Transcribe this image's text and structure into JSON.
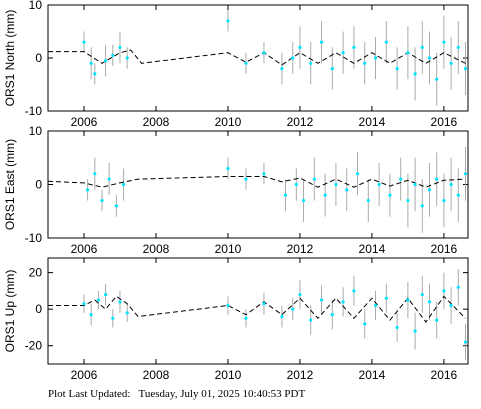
{
  "chart_data": [
    {
      "type": "scatter",
      "y_label": "ORS1 North (mm)",
      "xlim": [
        2005,
        2016.67
      ],
      "xticks": [
        2006,
        2008,
        2010,
        2012,
        2014,
        2016
      ],
      "ylim": [
        -10,
        10
      ],
      "yticks": [
        -10,
        0,
        10
      ],
      "point_color": "#00e5ff",
      "error_color": "#aaaaaa",
      "model_color": "#000000",
      "x": [
        2006.0,
        2006.2,
        2006.3,
        2006.6,
        2006.8,
        2007.0,
        2007.2,
        2010.0,
        2010.5,
        2011.0,
        2011.5,
        2011.8,
        2012.0,
        2012.3,
        2012.6,
        2012.9,
        2013.2,
        2013.5,
        2013.8,
        2014.1,
        2014.4,
        2014.7,
        2015.0,
        2015.2,
        2015.4,
        2015.6,
        2015.8,
        2016.0,
        2016.2,
        2016.4,
        2016.6
      ],
      "values": [
        3,
        -1,
        -3,
        -0.5,
        0.5,
        2,
        0,
        7,
        -1,
        1,
        -2,
        0,
        2,
        -1,
        3,
        -2,
        1,
        2,
        -1,
        0,
        3,
        -2,
        1,
        -3,
        2,
        0,
        -4,
        3,
        -1,
        2,
        -2
      ],
      "errors": [
        2,
        3,
        2,
        3,
        2,
        3,
        2,
        2,
        2,
        2,
        3,
        3,
        4,
        4,
        4,
        4,
        4,
        4,
        4,
        4,
        4,
        4,
        5,
        5,
        5,
        5,
        5,
        5,
        5,
        5,
        5
      ],
      "model_x": [
        2005.0,
        2006.0,
        2006.5,
        2007.0,
        2007.3,
        2007.6,
        2010.0,
        2010.5,
        2011.0,
        2011.5,
        2012.0,
        2012.5,
        2013.0,
        2013.5,
        2014.0,
        2014.5,
        2015.0,
        2015.5,
        2016.0,
        2016.6
      ],
      "model_values": [
        1.2,
        1.2,
        -1,
        1,
        1.5,
        -1,
        1,
        -0.8,
        1,
        -1.3,
        1,
        -1,
        1,
        -1,
        1,
        -1,
        1,
        -1,
        1,
        -1
      ]
    },
    {
      "type": "scatter",
      "y_label": "ORS1 East (mm)",
      "xlim": [
        2005,
        2016.67
      ],
      "xticks": [
        2006,
        2008,
        2010,
        2012,
        2014,
        2016
      ],
      "ylim": [
        -10,
        10
      ],
      "yticks": [
        -10,
        0,
        10
      ],
      "point_color": "#00e5ff",
      "error_color": "#aaaaaa",
      "model_color": "#000000",
      "x": [
        2006.1,
        2006.3,
        2006.5,
        2006.7,
        2006.9,
        2007.1,
        2010.0,
        2010.5,
        2011.0,
        2011.6,
        2011.9,
        2012.1,
        2012.4,
        2012.7,
        2013.0,
        2013.3,
        2013.6,
        2013.9,
        2014.2,
        2014.5,
        2014.8,
        2015.0,
        2015.2,
        2015.4,
        2015.6,
        2015.8,
        2016.0,
        2016.2,
        2016.4,
        2016.6
      ],
      "values": [
        -1,
        2,
        -3,
        1,
        -4,
        0,
        3,
        1,
        2,
        -2,
        0,
        -3,
        1,
        -2,
        0,
        -1,
        2,
        -3,
        0,
        -2,
        1,
        -3,
        0,
        -4,
        -1,
        1,
        -3,
        0,
        -2,
        2
      ],
      "errors": [
        2,
        3,
        2,
        3,
        2,
        3,
        2,
        2,
        2,
        3,
        3,
        4,
        4,
        4,
        4,
        4,
        4,
        4,
        4,
        4,
        4,
        5,
        5,
        5,
        5,
        5,
        5,
        5,
        5,
        5
      ],
      "model_x": [
        2005.0,
        2006.0,
        2006.5,
        2007.0,
        2007.5,
        2010.0,
        2011.0,
        2011.5,
        2012.0,
        2012.5,
        2013.0,
        2013.5,
        2014.0,
        2014.5,
        2015.0,
        2015.5,
        2016.0,
        2016.6
      ],
      "model_values": [
        0.6,
        0.3,
        -0.5,
        0.3,
        1,
        1.5,
        1.5,
        0.5,
        1.2,
        -0.5,
        1,
        -0.5,
        1,
        -0.3,
        0.8,
        -0.5,
        0.8,
        1
      ]
    },
    {
      "type": "scatter",
      "y_label": "ORS1 Up (mm)",
      "xlim": [
        2005,
        2016.67
      ],
      "xticks": [
        2006,
        2008,
        2010,
        2012,
        2014,
        2016
      ],
      "ylim": [
        -30,
        28
      ],
      "yticks": [
        -20,
        0,
        20
      ],
      "point_color": "#00e5ff",
      "error_color": "#aaaaaa",
      "model_color": "#000000",
      "x": [
        2006.0,
        2006.2,
        2006.4,
        2006.6,
        2006.8,
        2007.0,
        2007.2,
        2010.0,
        2010.5,
        2011.0,
        2011.5,
        2011.8,
        2012.0,
        2012.3,
        2012.6,
        2012.9,
        2013.2,
        2013.5,
        2013.8,
        2014.1,
        2014.4,
        2014.7,
        2015.0,
        2015.2,
        2015.4,
        2015.6,
        2015.8,
        2016.0,
        2016.2,
        2016.4,
        2016.6
      ],
      "values": [
        3,
        -3,
        5,
        8,
        -5,
        4,
        -2,
        2,
        -5,
        3,
        -4,
        0,
        8,
        -6,
        5,
        -3,
        4,
        10,
        -8,
        2,
        6,
        -10,
        5,
        -12,
        8,
        4,
        -6,
        10,
        2,
        12,
        -18
      ],
      "errors": [
        5,
        6,
        5,
        6,
        5,
        6,
        5,
        5,
        5,
        6,
        6,
        6,
        8,
        8,
        8,
        8,
        8,
        8,
        8,
        8,
        8,
        8,
        10,
        10,
        10,
        10,
        10,
        10,
        10,
        10,
        10
      ],
      "model_x": [
        2005.0,
        2006.0,
        2006.3,
        2006.6,
        2006.9,
        2007.2,
        2007.5,
        2010.0,
        2010.5,
        2011.0,
        2011.5,
        2012.0,
        2012.5,
        2013.0,
        2013.5,
        2014.0,
        2014.5,
        2015.0,
        2015.5,
        2016.0,
        2016.6
      ],
      "model_values": [
        2,
        2,
        5,
        0,
        7,
        3,
        -4,
        2,
        -3,
        4,
        -3,
        6,
        -5,
        6,
        -5,
        6,
        -6,
        6,
        -7,
        7,
        -5
      ]
    }
  ],
  "footer": "Plot Last Updated:   Tuesday, July 01, 2025 10:40:53 PDT"
}
